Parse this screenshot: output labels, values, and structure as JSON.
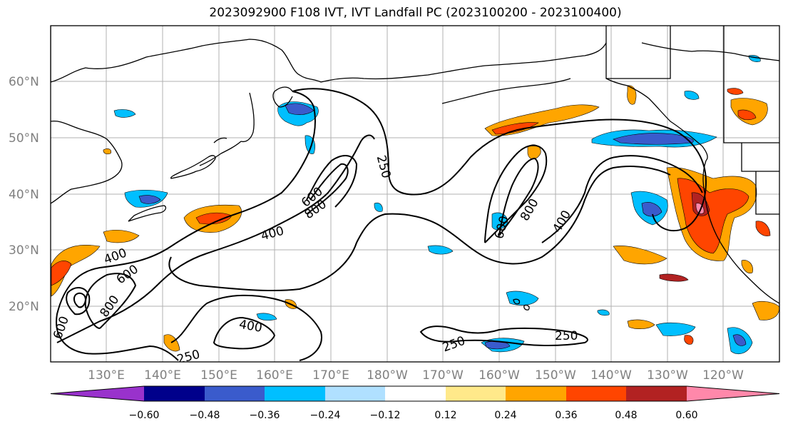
{
  "title": "2023092900 F108 IVT, IVT Landfall PC (2023100200 - 2023100400)",
  "lat_labels": [
    "60°N",
    "50°N",
    "40°N",
    "30°N",
    "20°N"
  ],
  "lon_labels": [
    "130°E",
    "140°E",
    "150°E",
    "160°E",
    "170°E",
    "180°W",
    "170°W",
    "160°W",
    "150°W",
    "140°W",
    "130°W",
    "120°W"
  ],
  "contour_labels": [
    "250",
    "400",
    "600",
    "800",
    "400",
    "800",
    "600",
    "400",
    "800",
    "600",
    "250",
    "400",
    "250",
    "250",
    "600"
  ],
  "colorbar": {
    "ticks": [
      "−0.60",
      "−0.48",
      "−0.36",
      "−0.24",
      "−0.12",
      "0.12",
      "0.24",
      "0.36",
      "0.48",
      "0.60"
    ],
    "colors": [
      "#9932cc",
      "#00008b",
      "#3a5bcc",
      "#00bfff",
      "#b0e0ff",
      "#ffffff",
      "#ffe98a",
      "#ffa500",
      "#ff4500",
      "#b22222",
      "#ff88aa"
    ]
  }
}
